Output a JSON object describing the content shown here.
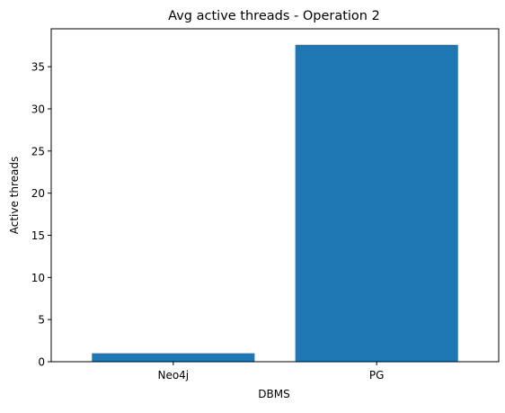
{
  "chart_data": {
    "type": "bar",
    "title": "Avg active threads - Operation 2",
    "xlabel": "DBMS",
    "ylabel": "Active threads",
    "categories": [
      "Neo4j",
      "PG"
    ],
    "values": [
      1.0,
      37.6
    ],
    "ylim": [
      0,
      39.5
    ],
    "yticks": [
      0,
      5,
      10,
      15,
      20,
      25,
      30,
      35
    ],
    "ytick_labels": [
      "0",
      "5",
      "10",
      "15",
      "20",
      "25",
      "30",
      "35"
    ],
    "bar_color": "#1f77b4",
    "grid": false,
    "legend": "none"
  }
}
